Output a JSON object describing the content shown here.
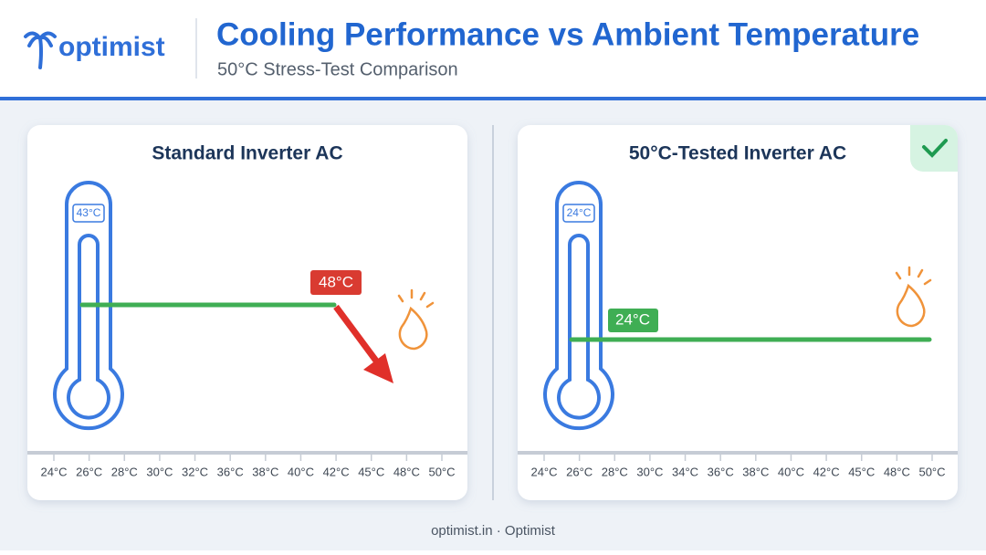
{
  "header": {
    "brand": "optimist",
    "title": "Cooling Performance vs Ambient Temperature",
    "subtitle": "50°C Stress-Test Comparison"
  },
  "panels": [
    {
      "title": "Standard Inverter AC",
      "thermometer_label": "43°C",
      "callout": "48°C",
      "axis_labels": [
        "24°C",
        "26°C",
        "28°C",
        "30°C",
        "32°C",
        "36°C",
        "38°C",
        "40°C",
        "42°C",
        "45°C",
        "48°C",
        "50°C"
      ]
    },
    {
      "title": "50°C-Tested Inverter AC",
      "thermometer_label": "24°C",
      "callout": "24°C",
      "axis_labels": [
        "24°C",
        "26°C",
        "28°C",
        "30°C",
        "34°C",
        "36°C",
        "38°C",
        "40°C",
        "42°C",
        "45°C",
        "48°C",
        "50°C"
      ]
    }
  ],
  "footer": "optimist.in · Optimist"
}
